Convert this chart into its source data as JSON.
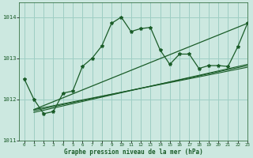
{
  "title": "Graphe pression niveau de la mer (hPa)",
  "bg_color": "#cce8e0",
  "grid_color": "#9ecec4",
  "line_color": "#1a5c28",
  "xlim": [
    -0.5,
    23
  ],
  "ylim": [
    1011.0,
    1014.35
  ],
  "yticks": [
    1011,
    1012,
    1013,
    1014
  ],
  "xticks": [
    0,
    1,
    2,
    3,
    4,
    5,
    6,
    7,
    8,
    9,
    10,
    11,
    12,
    13,
    14,
    15,
    16,
    17,
    18,
    19,
    20,
    21,
    22,
    23
  ],
  "main_series": [
    1012.5,
    1012.0,
    1011.65,
    1011.7,
    1012.15,
    1012.2,
    1012.8,
    1013.0,
    1013.3,
    1013.85,
    1014.0,
    1013.65,
    1013.72,
    1013.75,
    1013.2,
    1012.85,
    1013.1,
    1013.1,
    1012.75,
    1012.82,
    1012.82,
    1012.8,
    1013.28,
    1013.85
  ],
  "straight_line1": [
    1011.75,
    1012.78
  ],
  "straight_line2": [
    1011.72,
    1012.82
  ],
  "straight_line3": [
    1011.68,
    1012.85
  ],
  "diagonal_line": [
    1011.75,
    1013.85
  ]
}
